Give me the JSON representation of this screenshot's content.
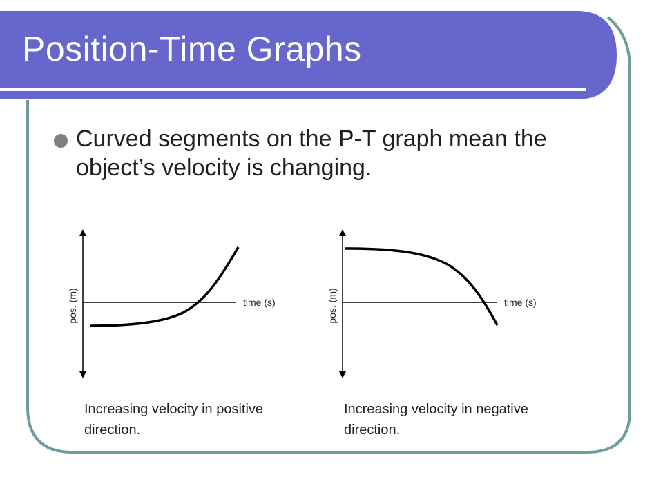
{
  "slide": {
    "title": "Position-Time Graphs",
    "bullet": "Curved segments on the P-T graph mean the object’s velocity is changing."
  },
  "graphs": [
    {
      "id": "positive",
      "x_axis_label": "time (s)",
      "y_axis_label": "pos. (m)",
      "curve": "concave-up",
      "caption": "Increasing velocity in positive direction."
    },
    {
      "id": "negative",
      "x_axis_label": "time (s)",
      "y_axis_label": "pos. (m)",
      "curve": "concave-down",
      "caption": "Increasing velocity in negative direction."
    }
  ],
  "colors": {
    "title_bar": "#6666cc",
    "frame_border": "#6f9b9b",
    "title_text": "#ffffff",
    "bullet": "#7f7f7f",
    "text": "#1f1f1f",
    "line": "#000000"
  }
}
